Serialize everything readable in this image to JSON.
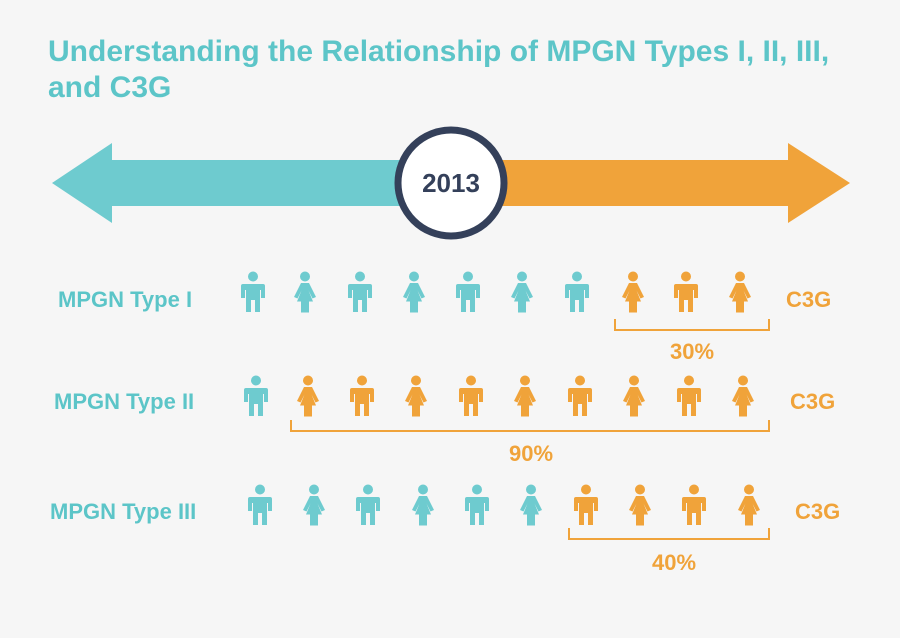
{
  "title": "Understanding the Relationship of MPGN Types I, II, III, and C3G",
  "timeline": {
    "year": "2013",
    "left_color": "#6ecbcf",
    "right_color": "#f0a33a",
    "circle_border": "#34405a"
  },
  "colors": {
    "teal": "#6ecbcf",
    "orange": "#f0a33a"
  },
  "rows": [
    {
      "label": "MPGN Type I",
      "end_label": "C3G",
      "percent": "30%",
      "figures": [
        "male-teal",
        "female-teal",
        "male-teal",
        "female-teal",
        "male-teal",
        "female-teal",
        "male-teal",
        "female-orange",
        "male-orange",
        "female-orange"
      ]
    },
    {
      "label": "MPGN Type II",
      "end_label": "C3G",
      "percent": "90%",
      "figures": [
        "male-teal",
        "female-orange",
        "male-orange",
        "female-orange",
        "male-orange",
        "female-orange",
        "male-orange",
        "female-orange",
        "male-orange",
        "female-orange"
      ]
    },
    {
      "label": "MPGN Type III",
      "end_label": "C3G",
      "percent": "40%",
      "figures": [
        "male-teal",
        "female-teal",
        "male-teal",
        "female-teal",
        "male-teal",
        "female-teal",
        "male-orange",
        "female-orange",
        "male-orange",
        "female-orange"
      ]
    }
  ]
}
